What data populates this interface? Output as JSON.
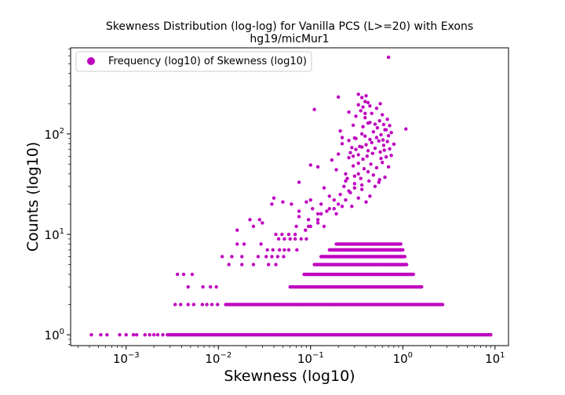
{
  "chart_data": {
    "type": "scatter",
    "title": "Skewness Distribution (log-log) for Vanilla PCS (L>=20) with Exons",
    "subtitle": "hg19/micMur1",
    "xlabel": "Skewness (log10)",
    "ylabel": "Counts (log10)",
    "xscale": "log",
    "yscale": "log",
    "xlim": [
      0.00025,
      14
    ],
    "ylim": [
      0.78,
      720
    ],
    "grid": false,
    "legend": {
      "entries": [
        "Frequency (log10) of Skewness (log10)"
      ],
      "loc": "upper-left"
    },
    "series_color": "#bf00bf",
    "xticks": [
      {
        "base": "10",
        "exp": "−3",
        "value": 0.001
      },
      {
        "base": "10",
        "exp": "−2",
        "value": 0.01
      },
      {
        "base": "10",
        "exp": "−1",
        "value": 0.1
      },
      {
        "base": "10",
        "exp": "0",
        "value": 1
      },
      {
        "base": "10",
        "exp": "1",
        "value": 10
      }
    ],
    "yticks": [
      {
        "base": "10",
        "exp": "0",
        "value": 1
      },
      {
        "base": "10",
        "exp": "1",
        "value": 10
      },
      {
        "base": "10",
        "exp": "2",
        "value": 100
      }
    ],
    "bands": [
      {
        "y": 1,
        "x_range": [
          0.0028,
          9
        ],
        "n": 240
      },
      {
        "y": 2,
        "x_range": [
          0.012,
          2.7
        ],
        "n": 170
      },
      {
        "y": 3,
        "x_range": [
          0.06,
          1.6
        ],
        "n": 140
      },
      {
        "y": 4,
        "x_range": [
          0.085,
          1.3
        ],
        "n": 120
      },
      {
        "y": 5,
        "x_range": [
          0.11,
          1.1
        ],
        "n": 100
      },
      {
        "y": 6,
        "x_range": [
          0.13,
          1.05
        ],
        "n": 85
      },
      {
        "y": 7,
        "x_range": [
          0.16,
          1.0
        ],
        "n": 65
      },
      {
        "y": 8,
        "x_range": [
          0.19,
          0.95
        ],
        "n": 45
      }
    ],
    "x": [
      0.00042,
      0.00053,
      0.00062,
      0.00085,
      0.001,
      0.0012,
      0.0013,
      0.0016,
      0.0018,
      0.002,
      0.0022,
      0.0025,
      0.0034,
      0.0039,
      0.0047,
      0.0054,
      0.0067,
      0.0075,
      0.0085,
      0.0098,
      0.0036,
      0.0042,
      0.0047,
      0.0052,
      0.0068,
      0.0082,
      0.0095,
      0.013,
      0.018,
      0.024,
      0.035,
      0.042,
      0.011,
      0.014,
      0.018,
      0.027,
      0.033,
      0.038,
      0.044,
      0.051,
      0.016,
      0.019,
      0.029,
      0.034,
      0.039,
      0.046,
      0.052,
      0.058,
      0.071,
      0.016,
      0.024,
      0.03,
      0.042,
      0.049,
      0.058,
      0.068,
      0.045,
      0.052,
      0.06,
      0.068,
      0.079,
      0.09,
      0.022,
      0.028,
      0.038,
      0.062,
      0.075,
      0.095,
      0.04,
      0.05,
      0.088,
      0.1,
      0.12,
      0.075,
      0.095,
      0.12,
      0.14,
      0.07,
      0.1,
      0.13,
      0.16,
      0.19,
      0.12,
      0.15,
      0.18,
      0.22,
      0.09,
      0.12,
      0.17,
      0.23,
      0.27,
      0.16,
      0.21,
      0.26,
      0.3,
      0.36,
      0.075,
      0.105,
      0.13,
      0.2,
      0.24,
      0.28,
      0.33,
      0.4,
      0.44,
      0.18,
      0.25,
      0.3,
      0.36,
      0.43,
      0.5,
      0.55,
      0.14,
      0.19,
      0.24,
      0.3,
      0.35,
      0.42,
      0.48,
      0.56,
      0.64,
      0.24,
      0.29,
      0.33,
      0.38,
      0.45,
      0.52,
      0.6,
      0.7,
      0.1,
      0.22,
      0.26,
      0.33,
      0.37,
      0.41,
      0.47,
      0.58,
      0.66,
      0.75,
      0.2,
      0.27,
      0.31,
      0.36,
      0.42,
      0.5,
      0.57,
      0.63,
      0.72,
      0.28,
      0.34,
      0.4,
      0.46,
      0.55,
      0.62,
      0.68,
      0.8,
      0.26,
      0.31,
      0.39,
      0.44,
      0.52,
      0.61,
      0.7,
      0.3,
      0.36,
      0.48,
      0.58,
      0.66,
      0.75,
      0.21,
      0.37,
      0.42,
      0.53,
      0.62,
      1.08,
      0.33,
      0.44,
      0.5,
      0.56,
      0.72,
      0.68,
      0.31,
      0.39,
      0.46,
      0.6,
      0.26,
      0.35,
      0.52,
      0.64,
      0.11,
      0.37,
      0.44,
      0.22,
      0.33,
      0.29,
      0.42,
      0.57,
      0.29,
      0.39,
      0.2,
      0.36,
      0.4,
      0.33,
      0.7,
      0.39
    ],
    "y": [
      1,
      1,
      1,
      1,
      1,
      1,
      1,
      1,
      1,
      1,
      1,
      1,
      2,
      2,
      2,
      2,
      2,
      2,
      2,
      2,
      4,
      4,
      3,
      4,
      3,
      3,
      3,
      5,
      5,
      5,
      5,
      5,
      6,
      6,
      6,
      6,
      6,
      6,
      6,
      6,
      8,
      8,
      8,
      7,
      7,
      7,
      7,
      7,
      7,
      11,
      12,
      13,
      10,
      10,
      10,
      10,
      9,
      9,
      9,
      9,
      9,
      9,
      14,
      14,
      20,
      20,
      17,
      12,
      23,
      21,
      11,
      12,
      16,
      15,
      14,
      13,
      12,
      12,
      22,
      20,
      18,
      16,
      14,
      17,
      18,
      19,
      21,
      47,
      55,
      30,
      26,
      24,
      25,
      27,
      29,
      31,
      33,
      18,
      16,
      20,
      22,
      19,
      23,
      21,
      24,
      22,
      36,
      32,
      28,
      34,
      30,
      33,
      29,
      44,
      40,
      38,
      36,
      42,
      39,
      35,
      37,
      34,
      48,
      51,
      45,
      50,
      46,
      52,
      47,
      49,
      80,
      58,
      62,
      56,
      60,
      64,
      57,
      59,
      61,
      63,
      65,
      70,
      74,
      68,
      72,
      66,
      69,
      71,
      73,
      75,
      78,
      82,
      85,
      77,
      84,
      79,
      86,
      90,
      95,
      88,
      92,
      87,
      96,
      91,
      100,
      105,
      98,
      110,
      103,
      107,
      118,
      128,
      115,
      124,
      112,
      40,
      130,
      125,
      135,
      121,
      140,
      150,
      145,
      160,
      155,
      165,
      170,
      180,
      110,
      175,
      185,
      190,
      92,
      195,
      60,
      205,
      200,
      122,
      210,
      233,
      230,
      240,
      248,
      580,
      160
    ]
  }
}
